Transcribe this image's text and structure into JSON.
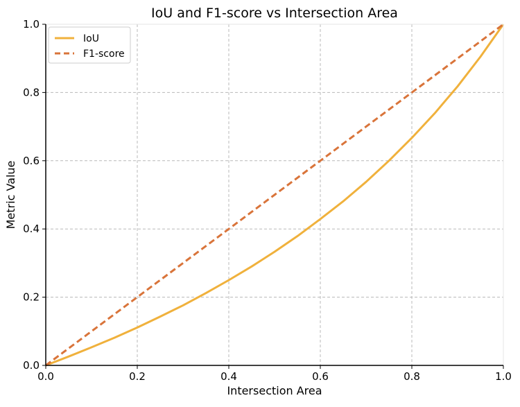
{
  "chart_data": {
    "type": "line",
    "title": "IoU and F1-score vs Intersection Area",
    "xlabel": "Intersection Area",
    "ylabel": "Metric Value",
    "xlim": [
      0,
      1
    ],
    "ylim": [
      0,
      1
    ],
    "x_ticks": [
      "0.0",
      "0.2",
      "0.4",
      "0.6",
      "0.8",
      "1.0"
    ],
    "y_ticks": [
      "0.0",
      "0.2",
      "0.4",
      "0.6",
      "0.8",
      "1.0"
    ],
    "grid": true,
    "legend_position": "top-left",
    "x": [
      0.0,
      0.05,
      0.1,
      0.15,
      0.2,
      0.25,
      0.3,
      0.35,
      0.4,
      0.45,
      0.5,
      0.55,
      0.6,
      0.65,
      0.7,
      0.75,
      0.8,
      0.85,
      0.9,
      0.95,
      1.0
    ],
    "series": [
      {
        "name": "IoU",
        "color": "#f0b13c",
        "style": "solid",
        "values": [
          0.0,
          0.026,
          0.053,
          0.081,
          0.111,
          0.143,
          0.176,
          0.212,
          0.25,
          0.29,
          0.333,
          0.379,
          0.429,
          0.481,
          0.538,
          0.6,
          0.667,
          0.739,
          0.818,
          0.905,
          1.0
        ]
      },
      {
        "name": "F1-score",
        "color": "#d9743a",
        "style": "dashed",
        "values": [
          0.0,
          0.05,
          0.1,
          0.15,
          0.2,
          0.25,
          0.3,
          0.35,
          0.4,
          0.45,
          0.5,
          0.55,
          0.6,
          0.65,
          0.7,
          0.75,
          0.8,
          0.85,
          0.9,
          0.95,
          1.0
        ]
      }
    ]
  }
}
